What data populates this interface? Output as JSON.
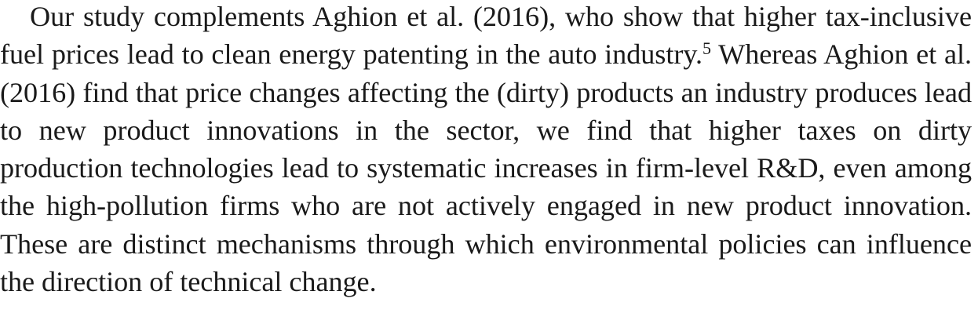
{
  "paragraph": {
    "part1": "Our study complements Aghion et al. (2016), who show that higher tax-inclusive fuel prices lead to clean energy patenting in the auto industry.",
    "footnote_marker": "5",
    "part2": " Whereas Aghion et al. (2016) find that price changes affecting the (dirty) products an industry produces lead to new product innovations in the sector, we find that higher taxes on dirty production technologies lead to systematic increases in firm-level R&D, even among the high-pollution firms who are not actively engaged in new product innovation. These are distinct mechanisms through which environmental policies can influence the direction of technical change."
  }
}
